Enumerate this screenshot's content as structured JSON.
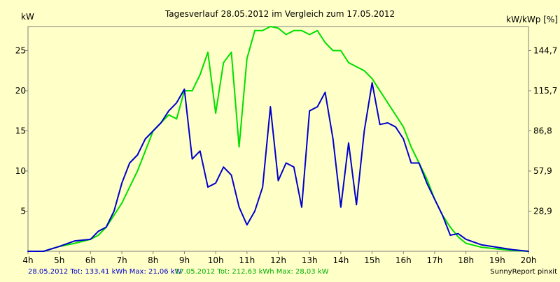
{
  "chart_data": {
    "type": "line",
    "title": "Tagesverlauf 28.05.2012 im Vergleich zum 17.05.2012",
    "ylabel_left": "kW",
    "ylabel_right": "kW/kWp [%]",
    "x_range": [
      4,
      20
    ],
    "x_ticks": [
      4,
      5,
      6,
      7,
      8,
      9,
      10,
      11,
      12,
      13,
      14,
      15,
      16,
      17,
      18,
      19,
      20
    ],
    "x_tick_labels": [
      "4h",
      "5h",
      "6h",
      "7h",
      "8h",
      "9h",
      "10h",
      "11h",
      "12h",
      "13h",
      "14h",
      "15h",
      "16h",
      "17h",
      "18h",
      "19h",
      "20h"
    ],
    "y_range": [
      0,
      28
    ],
    "y_ticks": [
      5,
      10,
      15,
      20,
      25
    ],
    "y_tick_labels": [
      "5",
      "10",
      "15",
      "20",
      "25"
    ],
    "y2_ticks": [
      5,
      10,
      15,
      20,
      25
    ],
    "y2_tick_labels": [
      "28,9",
      "57,9",
      "86,8",
      "115,7",
      "144,7"
    ],
    "grid": false,
    "series": [
      {
        "color": "#00e000",
        "points": [
          [
            4.0,
            0.0
          ],
          [
            4.5,
            0.0
          ],
          [
            5.0,
            0.6
          ],
          [
            5.5,
            1.0
          ],
          [
            6.0,
            1.5
          ],
          [
            6.25,
            2.0
          ],
          [
            6.5,
            3.0
          ],
          [
            6.75,
            4.5
          ],
          [
            7.0,
            6.0
          ],
          [
            7.25,
            8.0
          ],
          [
            7.5,
            10.0
          ],
          [
            7.75,
            12.5
          ],
          [
            8.0,
            15.0
          ],
          [
            8.25,
            16.0
          ],
          [
            8.5,
            17.0
          ],
          [
            8.75,
            16.5
          ],
          [
            9.0,
            20.0
          ],
          [
            9.25,
            20.0
          ],
          [
            9.5,
            22.0
          ],
          [
            9.75,
            24.8
          ],
          [
            10.0,
            17.2
          ],
          [
            10.25,
            23.5
          ],
          [
            10.5,
            24.8
          ],
          [
            10.75,
            13.0
          ],
          [
            11.0,
            24.0
          ],
          [
            11.25,
            27.5
          ],
          [
            11.5,
            27.5
          ],
          [
            11.75,
            28.0
          ],
          [
            12.0,
            27.8
          ],
          [
            12.25,
            27.0
          ],
          [
            12.5,
            27.5
          ],
          [
            12.75,
            27.5
          ],
          [
            13.0,
            27.0
          ],
          [
            13.25,
            27.5
          ],
          [
            13.5,
            26.0
          ],
          [
            13.75,
            25.0
          ],
          [
            14.0,
            25.0
          ],
          [
            14.25,
            23.5
          ],
          [
            14.5,
            23.0
          ],
          [
            14.75,
            22.5
          ],
          [
            15.0,
            21.5
          ],
          [
            15.25,
            20.0
          ],
          [
            15.5,
            18.5
          ],
          [
            15.75,
            17.0
          ],
          [
            16.0,
            15.5
          ],
          [
            16.25,
            13.0
          ],
          [
            16.5,
            11.0
          ],
          [
            16.75,
            9.0
          ],
          [
            17.0,
            6.5
          ],
          [
            17.25,
            4.5
          ],
          [
            17.5,
            3.0
          ],
          [
            17.75,
            1.8
          ],
          [
            18.0,
            1.0
          ],
          [
            18.5,
            0.5
          ],
          [
            19.0,
            0.3
          ],
          [
            19.5,
            0.1
          ],
          [
            20.0,
            0.0
          ]
        ]
      },
      {
        "color": "#0000cc",
        "points": [
          [
            4.0,
            0.0
          ],
          [
            4.5,
            0.0
          ],
          [
            5.0,
            0.6
          ],
          [
            5.5,
            1.3
          ],
          [
            6.0,
            1.5
          ],
          [
            6.25,
            2.5
          ],
          [
            6.5,
            3.0
          ],
          [
            6.75,
            5.0
          ],
          [
            7.0,
            8.5
          ],
          [
            7.25,
            11.0
          ],
          [
            7.5,
            12.0
          ],
          [
            7.75,
            14.0
          ],
          [
            8.0,
            15.0
          ],
          [
            8.25,
            16.0
          ],
          [
            8.5,
            17.5
          ],
          [
            8.75,
            18.5
          ],
          [
            9.0,
            20.2
          ],
          [
            9.25,
            11.5
          ],
          [
            9.5,
            12.5
          ],
          [
            9.75,
            8.0
          ],
          [
            10.0,
            8.5
          ],
          [
            10.25,
            10.5
          ],
          [
            10.5,
            9.5
          ],
          [
            10.75,
            5.5
          ],
          [
            11.0,
            3.3
          ],
          [
            11.25,
            5.0
          ],
          [
            11.5,
            8.0
          ],
          [
            11.75,
            18.0
          ],
          [
            12.0,
            8.8
          ],
          [
            12.25,
            11.0
          ],
          [
            12.5,
            10.5
          ],
          [
            12.75,
            5.5
          ],
          [
            13.0,
            17.5
          ],
          [
            13.25,
            18.0
          ],
          [
            13.5,
            19.8
          ],
          [
            13.75,
            14.0
          ],
          [
            14.0,
            5.5
          ],
          [
            14.25,
            13.5
          ],
          [
            14.5,
            5.8
          ],
          [
            14.75,
            15.0
          ],
          [
            15.0,
            21.0
          ],
          [
            15.25,
            15.8
          ],
          [
            15.5,
            16.0
          ],
          [
            15.75,
            15.5
          ],
          [
            16.0,
            14.0
          ],
          [
            16.25,
            11.0
          ],
          [
            16.5,
            11.0
          ],
          [
            16.75,
            8.5
          ],
          [
            17.0,
            6.5
          ],
          [
            17.25,
            4.5
          ],
          [
            17.5,
            2.0
          ],
          [
            17.75,
            2.2
          ],
          [
            18.0,
            1.5
          ],
          [
            18.5,
            0.8
          ],
          [
            19.0,
            0.5
          ],
          [
            19.5,
            0.2
          ],
          [
            20.0,
            0.0
          ]
        ]
      }
    ]
  },
  "footer": {
    "legend_blue": "28.05.2012 Tot: 133,41 kWh Max: 21,06 kW",
    "legend_green": "17.05.2012 Tot: 212,63 kWh Max: 28,03 kW",
    "credit": "SunnyReport pinxit"
  }
}
